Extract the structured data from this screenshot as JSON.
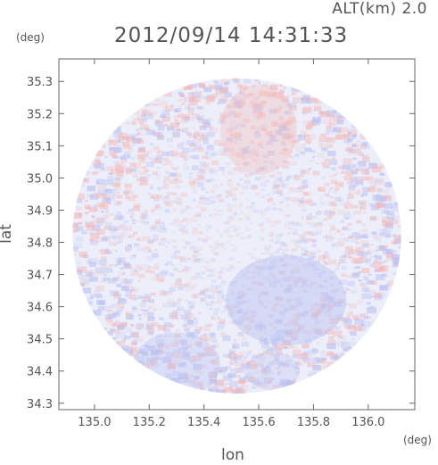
{
  "header": {
    "altitude_label": "ALT(km) 2.0",
    "timestamp": "2012/09/14 14:31:33"
  },
  "chart_data": {
    "type": "heatmap",
    "title": "2012/09/14 14:31:33",
    "xlabel": "lon",
    "ylabel": "lat",
    "x_unit": "(deg)",
    "y_unit": "(deg)",
    "xlim": [
      134.87,
      136.17
    ],
    "ylim": [
      34.28,
      35.37
    ],
    "x_ticks": [
      "135.0",
      "135.2",
      "135.4",
      "135.6",
      "135.8",
      "136.0"
    ],
    "x_tick_values": [
      135.0,
      135.2,
      135.4,
      135.6,
      135.8,
      136.0
    ],
    "y_ticks": [
      "34.3",
      "34.4",
      "34.5",
      "34.6",
      "34.7",
      "34.8",
      "34.9",
      "35.0",
      "35.1",
      "35.2",
      "35.3"
    ],
    "y_tick_values": [
      34.3,
      34.4,
      34.5,
      34.6,
      34.7,
      34.8,
      34.9,
      35.0,
      35.1,
      35.2,
      35.3
    ],
    "radar_center": {
      "lon": 135.52,
      "lat": 34.82
    },
    "coverage_radius_deg": {
      "lon": 0.6,
      "lat": 0.49
    },
    "colors": {
      "positive": "#f4b9b9",
      "negative": "#b9bff0",
      "neutral": "#eceef9"
    },
    "grid": false
  }
}
